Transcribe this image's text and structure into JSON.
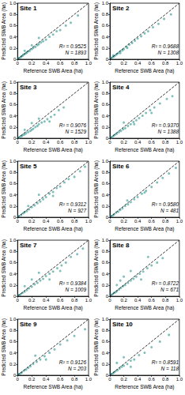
{
  "chart_data": [
    {
      "type": "scatter",
      "title": "Site 1",
      "x_label": "Reference SWB Area (ha)",
      "y_label": "Predicted SWB Area (ha)",
      "xlim": [
        0,
        1
      ],
      "ylim": [
        0,
        1
      ],
      "xticks": [
        0,
        0.2,
        0.4,
        0.6,
        0.8,
        {
          "value": 1,
          "label": "1.0"
        }
      ],
      "yticks": [
        0,
        0.2,
        0.4,
        0.6,
        0.8,
        {
          "value": 1,
          "label": "1.0"
        }
      ],
      "annotations": [
        "R² = 0.9525",
        "N = 1893"
      ],
      "series": [
        {
          "type": "scatter",
          "color": "#3a9e98",
          "marker": "circle",
          "x": [
            0.02,
            0.04,
            0.05,
            0.07,
            0.08,
            0.1,
            0.12,
            0.13,
            0.15,
            0.17,
            0.2,
            0.22,
            0.25,
            0.28,
            0.3,
            0.33,
            0.36,
            0.4,
            0.45,
            0.5,
            0.55,
            0.6,
            0.68,
            0.75,
            0.85,
            0.1,
            0.2,
            0.3
          ],
          "values": [
            0.02,
            0.03,
            0.05,
            0.06,
            0.08,
            0.09,
            0.11,
            0.12,
            0.14,
            0.15,
            0.18,
            0.2,
            0.22,
            0.25,
            0.27,
            0.3,
            0.32,
            0.35,
            0.4,
            0.44,
            0.5,
            0.52,
            0.6,
            0.65,
            0.78,
            0.15,
            0.25,
            0.38
          ]
        },
        {
          "type": "line",
          "color": "#000000",
          "line_style": "dashed",
          "x": [
            0,
            1
          ],
          "values": [
            0,
            1
          ]
        }
      ]
    },
    {
      "type": "scatter",
      "title": "Site 2",
      "x_label": "Reference SWB Area (ha)",
      "y_label": "Predicted SWB Area (ha)",
      "xlim": [
        0,
        1
      ],
      "ylim": [
        0,
        1
      ],
      "xticks": [
        0,
        0.2,
        0.4,
        0.6,
        0.8,
        {
          "value": 1,
          "label": "1.0"
        }
      ],
      "yticks": [
        0,
        0.2,
        0.4,
        0.6,
        0.8,
        {
          "value": 1,
          "label": "1.0"
        }
      ],
      "annotations": [
        "R² = 0.9688",
        "N = 1308"
      ],
      "series": [
        {
          "type": "scatter",
          "color": "#3a9e98",
          "marker": "circle",
          "x": [
            0.02,
            0.04,
            0.06,
            0.08,
            0.1,
            0.12,
            0.15,
            0.18,
            0.2,
            0.24,
            0.28,
            0.32,
            0.36,
            0.4,
            0.45,
            0.5,
            0.55,
            0.62,
            0.7,
            0.78,
            0.88,
            0.15,
            0.25,
            0.05
          ],
          "values": [
            0.02,
            0.04,
            0.05,
            0.07,
            0.09,
            0.11,
            0.14,
            0.16,
            0.18,
            0.22,
            0.26,
            0.29,
            0.33,
            0.37,
            0.41,
            0.46,
            0.5,
            0.57,
            0.63,
            0.72,
            0.8,
            0.11,
            0.2,
            0.07
          ]
        },
        {
          "type": "line",
          "color": "#000000",
          "line_style": "dashed",
          "x": [
            0,
            1
          ],
          "values": [
            0,
            1
          ]
        }
      ]
    },
    {
      "type": "scatter",
      "title": "Site 3",
      "x_label": "Reference SWB Area (ha)",
      "y_label": "Predicted SWB Area (ha)",
      "xlim": [
        0,
        1
      ],
      "ylim": [
        0,
        1
      ],
      "xticks": [
        0,
        0.2,
        0.4,
        0.6,
        0.8,
        {
          "value": 1,
          "label": "1.0"
        }
      ],
      "yticks": [
        0,
        0.2,
        0.4,
        0.6,
        0.8,
        {
          "value": 1,
          "label": "1.0"
        }
      ],
      "annotations": [
        "R² = 0.9076",
        "N = 1529"
      ],
      "series": [
        {
          "type": "scatter",
          "color": "#3a9e98",
          "marker": "circle",
          "x": [
            0.02,
            0.04,
            0.06,
            0.08,
            0.1,
            0.12,
            0.15,
            0.18,
            0.2,
            0.22,
            0.25,
            0.28,
            0.3,
            0.34,
            0.38,
            0.42,
            0.47,
            0.52,
            0.58,
            0.65,
            0.1,
            0.2,
            0.3,
            0.45
          ],
          "values": [
            0.01,
            0.03,
            0.04,
            0.06,
            0.07,
            0.09,
            0.11,
            0.13,
            0.15,
            0.17,
            0.2,
            0.22,
            0.25,
            0.28,
            0.3,
            0.34,
            0.38,
            0.42,
            0.5,
            0.55,
            0.15,
            0.27,
            0.35,
            0.3
          ]
        },
        {
          "type": "line",
          "color": "#000000",
          "line_style": "dashed",
          "x": [
            0,
            1
          ],
          "values": [
            0,
            1
          ]
        }
      ]
    },
    {
      "type": "scatter",
      "title": "Site 4",
      "x_label": "Reference SWB Area (ha)",
      "y_label": "Predicted SWB Area (ha)",
      "xlim": [
        0,
        1
      ],
      "ylim": [
        0,
        1
      ],
      "xticks": [
        0,
        0.2,
        0.4,
        0.6,
        0.8,
        {
          "value": 1,
          "label": "1.0"
        }
      ],
      "yticks": [
        0,
        0.2,
        0.4,
        0.6,
        0.8,
        {
          "value": 1,
          "label": "1.0"
        }
      ],
      "annotations": [
        "R² = 0.9370",
        "N = 1388"
      ],
      "series": [
        {
          "type": "scatter",
          "color": "#3a9e98",
          "marker": "circle",
          "x": [
            0.02,
            0.04,
            0.06,
            0.08,
            0.1,
            0.13,
            0.16,
            0.19,
            0.22,
            0.26,
            0.3,
            0.34,
            0.38,
            0.42,
            0.47,
            0.52,
            0.58,
            0.64,
            0.72,
            0.82,
            0.9,
            0.2,
            0.35,
            0.6
          ],
          "values": [
            0.01,
            0.03,
            0.05,
            0.07,
            0.08,
            0.11,
            0.13,
            0.16,
            0.18,
            0.22,
            0.25,
            0.29,
            0.32,
            0.36,
            0.4,
            0.45,
            0.5,
            0.55,
            0.62,
            0.7,
            0.75,
            0.28,
            0.25,
            0.45
          ]
        },
        {
          "type": "line",
          "color": "#000000",
          "line_style": "dashed",
          "x": [
            0,
            1
          ],
          "values": [
            0,
            1
          ]
        }
      ]
    },
    {
      "type": "scatter",
      "title": "Site 5",
      "x_label": "Reference SWB Area (ha)",
      "y_label": "Predicted SWB Area (ha)",
      "xlim": [
        0,
        1
      ],
      "ylim": [
        0,
        1
      ],
      "xticks": [
        0,
        0.2,
        0.4,
        0.6,
        0.8,
        {
          "value": 1,
          "label": "1.0"
        }
      ],
      "yticks": [
        0,
        0.2,
        0.4,
        0.6,
        0.8,
        {
          "value": 1,
          "label": "1.0"
        }
      ],
      "annotations": [
        "R² = 0.9312",
        "N = 927"
      ],
      "series": [
        {
          "type": "scatter",
          "color": "#3a9e98",
          "marker": "circle",
          "x": [
            0.02,
            0.05,
            0.08,
            0.1,
            0.13,
            0.16,
            0.2,
            0.24,
            0.28,
            0.32,
            0.36,
            0.4,
            0.45,
            0.5,
            0.55,
            0.6,
            0.66,
            0.72,
            0.8,
            0.88,
            0.95,
            0.3,
            0.5,
            0.15
          ],
          "values": [
            0.02,
            0.04,
            0.07,
            0.09,
            0.11,
            0.14,
            0.18,
            0.21,
            0.25,
            0.28,
            0.32,
            0.36,
            0.42,
            0.45,
            0.52,
            0.55,
            0.62,
            0.68,
            0.72,
            0.82,
            0.9,
            0.4,
            0.38,
            0.2
          ]
        },
        {
          "type": "line",
          "color": "#000000",
          "line_style": "dashed",
          "x": [
            0,
            1
          ],
          "values": [
            0,
            1
          ]
        }
      ]
    },
    {
      "type": "scatter",
      "title": "Site 6",
      "x_label": "Reference SWB Area (ha)",
      "y_label": "Predicted SWB Area (ha)",
      "xlim": [
        0,
        1
      ],
      "ylim": [
        0,
        1
      ],
      "xticks": [
        0,
        0.2,
        0.4,
        0.6,
        0.8,
        {
          "value": 1,
          "label": "1.0"
        }
      ],
      "yticks": [
        0,
        0.2,
        0.4,
        0.6,
        0.8,
        {
          "value": 1,
          "label": "1.0"
        }
      ],
      "annotations": [
        "R² = 0.9580",
        "N = 481"
      ],
      "series": [
        {
          "type": "scatter",
          "color": "#3a9e98",
          "marker": "circle",
          "x": [
            0.02,
            0.04,
            0.06,
            0.09,
            0.12,
            0.15,
            0.18,
            0.22,
            0.26,
            0.3,
            0.35,
            0.4,
            0.46,
            0.52,
            0.6,
            0.68,
            0.76,
            0.85,
            0.95,
            0.25,
            0.5
          ],
          "values": [
            0.02,
            0.03,
            0.05,
            0.08,
            0.1,
            0.13,
            0.16,
            0.2,
            0.23,
            0.27,
            0.32,
            0.36,
            0.42,
            0.47,
            0.54,
            0.62,
            0.7,
            0.78,
            0.88,
            0.3,
            0.44
          ]
        },
        {
          "type": "line",
          "color": "#000000",
          "line_style": "dashed",
          "x": [
            0,
            1
          ],
          "values": [
            0,
            1
          ]
        }
      ]
    },
    {
      "type": "scatter",
      "title": "Site 7",
      "x_label": "Reference SWB Area (ha)",
      "y_label": "Predicted SWB Area (ha)",
      "xlim": [
        0,
        1
      ],
      "ylim": [
        0,
        1
      ],
      "xticks": [
        0,
        0.2,
        0.4,
        0.6,
        0.8,
        {
          "value": 1,
          "label": "1.0"
        }
      ],
      "yticks": [
        0,
        0.2,
        0.4,
        0.6,
        0.8,
        {
          "value": 1,
          "label": "1.0"
        }
      ],
      "annotations": [
        "R² = 0.9384",
        "N = 1009"
      ],
      "series": [
        {
          "type": "scatter",
          "color": "#3a9e98",
          "marker": "circle",
          "x": [
            0.02,
            0.04,
            0.07,
            0.1,
            0.13,
            0.16,
            0.2,
            0.24,
            0.28,
            0.32,
            0.36,
            0.4,
            0.45,
            0.5,
            0.56,
            0.62,
            0.68,
            0.75,
            0.84,
            0.92,
            0.2,
            0.3,
            0.45,
            0.6,
            0.1
          ],
          "values": [
            0.02,
            0.03,
            0.06,
            0.08,
            0.11,
            0.14,
            0.17,
            0.21,
            0.24,
            0.28,
            0.31,
            0.36,
            0.4,
            0.44,
            0.5,
            0.55,
            0.6,
            0.7,
            0.75,
            0.85,
            0.3,
            0.42,
            0.3,
            0.45,
            0.18
          ]
        },
        {
          "type": "line",
          "color": "#000000",
          "line_style": "dashed",
          "x": [
            0,
            1
          ],
          "values": [
            0,
            1
          ]
        }
      ]
    },
    {
      "type": "scatter",
      "title": "Site 8",
      "x_label": "Reference SWB Area (ha)",
      "y_label": "Predicted SWB Area (ha)",
      "xlim": [
        0,
        1
      ],
      "ylim": [
        0,
        1
      ],
      "xticks": [
        0,
        0.2,
        0.4,
        0.6,
        0.8,
        {
          "value": 1,
          "label": "1.0"
        }
      ],
      "yticks": [
        0,
        0.2,
        0.4,
        0.6,
        0.8,
        {
          "value": 1,
          "label": "1.0"
        }
      ],
      "annotations": [
        "R² = 0.8722",
        "N = 671"
      ],
      "series": [
        {
          "type": "scatter",
          "color": "#3a9e98",
          "marker": "circle",
          "x": [
            0.02,
            0.04,
            0.06,
            0.08,
            0.1,
            0.13,
            0.16,
            0.19,
            0.22,
            0.26,
            0.3,
            0.34,
            0.38,
            0.43,
            0.48,
            0.54,
            0.6,
            0.68,
            0.76,
            0.1,
            0.15,
            0.2,
            0.3,
            0.45,
            0.55
          ],
          "values": [
            0.02,
            0.04,
            0.06,
            0.07,
            0.09,
            0.12,
            0.15,
            0.18,
            0.2,
            0.24,
            0.28,
            0.31,
            0.35,
            0.4,
            0.44,
            0.5,
            0.55,
            0.6,
            0.68,
            0.2,
            0.28,
            0.35,
            0.45,
            0.3,
            0.7
          ]
        },
        {
          "type": "line",
          "color": "#000000",
          "line_style": "dashed",
          "x": [
            0,
            1
          ],
          "values": [
            0,
            1
          ]
        }
      ]
    },
    {
      "type": "scatter",
      "title": "Site 9",
      "x_label": "Reference SWB Area (ha)",
      "y_label": "Predicted SWB Area (ha)",
      "xlim": [
        0,
        1
      ],
      "ylim": [
        0,
        1
      ],
      "xticks": [
        0,
        0.2,
        0.4,
        0.6,
        0.8,
        {
          "value": 1,
          "label": "1.0"
        }
      ],
      "yticks": [
        0,
        0.2,
        0.4,
        0.6,
        0.8,
        {
          "value": 1,
          "label": "1.0"
        }
      ],
      "annotations": [
        "R² = 0.9126",
        "N = 203"
      ],
      "series": [
        {
          "type": "scatter",
          "color": "#3a9e98",
          "marker": "circle",
          "x": [
            0.02,
            0.04,
            0.06,
            0.09,
            0.12,
            0.15,
            0.18,
            0.22,
            0.27,
            0.32,
            0.38,
            0.45,
            0.52,
            0.6,
            0.7,
            0.8,
            0.95,
            0.25,
            0.4
          ],
          "values": [
            0.02,
            0.03,
            0.05,
            0.08,
            0.1,
            0.13,
            0.16,
            0.2,
            0.24,
            0.28,
            0.34,
            0.4,
            0.46,
            0.55,
            0.62,
            0.7,
            0.82,
            0.35,
            0.28
          ]
        },
        {
          "type": "line",
          "color": "#000000",
          "line_style": "dashed",
          "x": [
            0,
            1
          ],
          "values": [
            0,
            1
          ]
        }
      ]
    },
    {
      "type": "scatter",
      "title": "Site 10",
      "x_label": "Reference SWB Area (ha)",
      "y_label": "Predicted SWB Area (ha)",
      "xlim": [
        0,
        1
      ],
      "ylim": [
        0,
        1
      ],
      "xticks": [
        0,
        0.2,
        0.4,
        0.6,
        0.8,
        {
          "value": 1,
          "label": "1.0"
        }
      ],
      "yticks": [
        0,
        0.2,
        0.4,
        0.6,
        0.8,
        {
          "value": 1,
          "label": "1.0"
        }
      ],
      "annotations": [
        "R² = 0.8591",
        "N = 118"
      ],
      "series": [
        {
          "type": "scatter",
          "color": "#3a9e98",
          "marker": "circle",
          "x": [
            0.02,
            0.04,
            0.06,
            0.08,
            0.11,
            0.14,
            0.17,
            0.2,
            0.25,
            0.3,
            0.35,
            0.42,
            0.5,
            0.6,
            0.72,
            0.85,
            0.1,
            0.2,
            0.3
          ],
          "values": [
            0.02,
            0.03,
            0.05,
            0.07,
            0.09,
            0.12,
            0.15,
            0.17,
            0.2,
            0.26,
            0.28,
            0.36,
            0.4,
            0.5,
            0.6,
            0.72,
            0.22,
            0.32,
            0.15
          ]
        },
        {
          "type": "line",
          "color": "#000000",
          "line_style": "dashed",
          "x": [
            0,
            1
          ],
          "values": [
            0,
            1
          ]
        }
      ]
    }
  ]
}
